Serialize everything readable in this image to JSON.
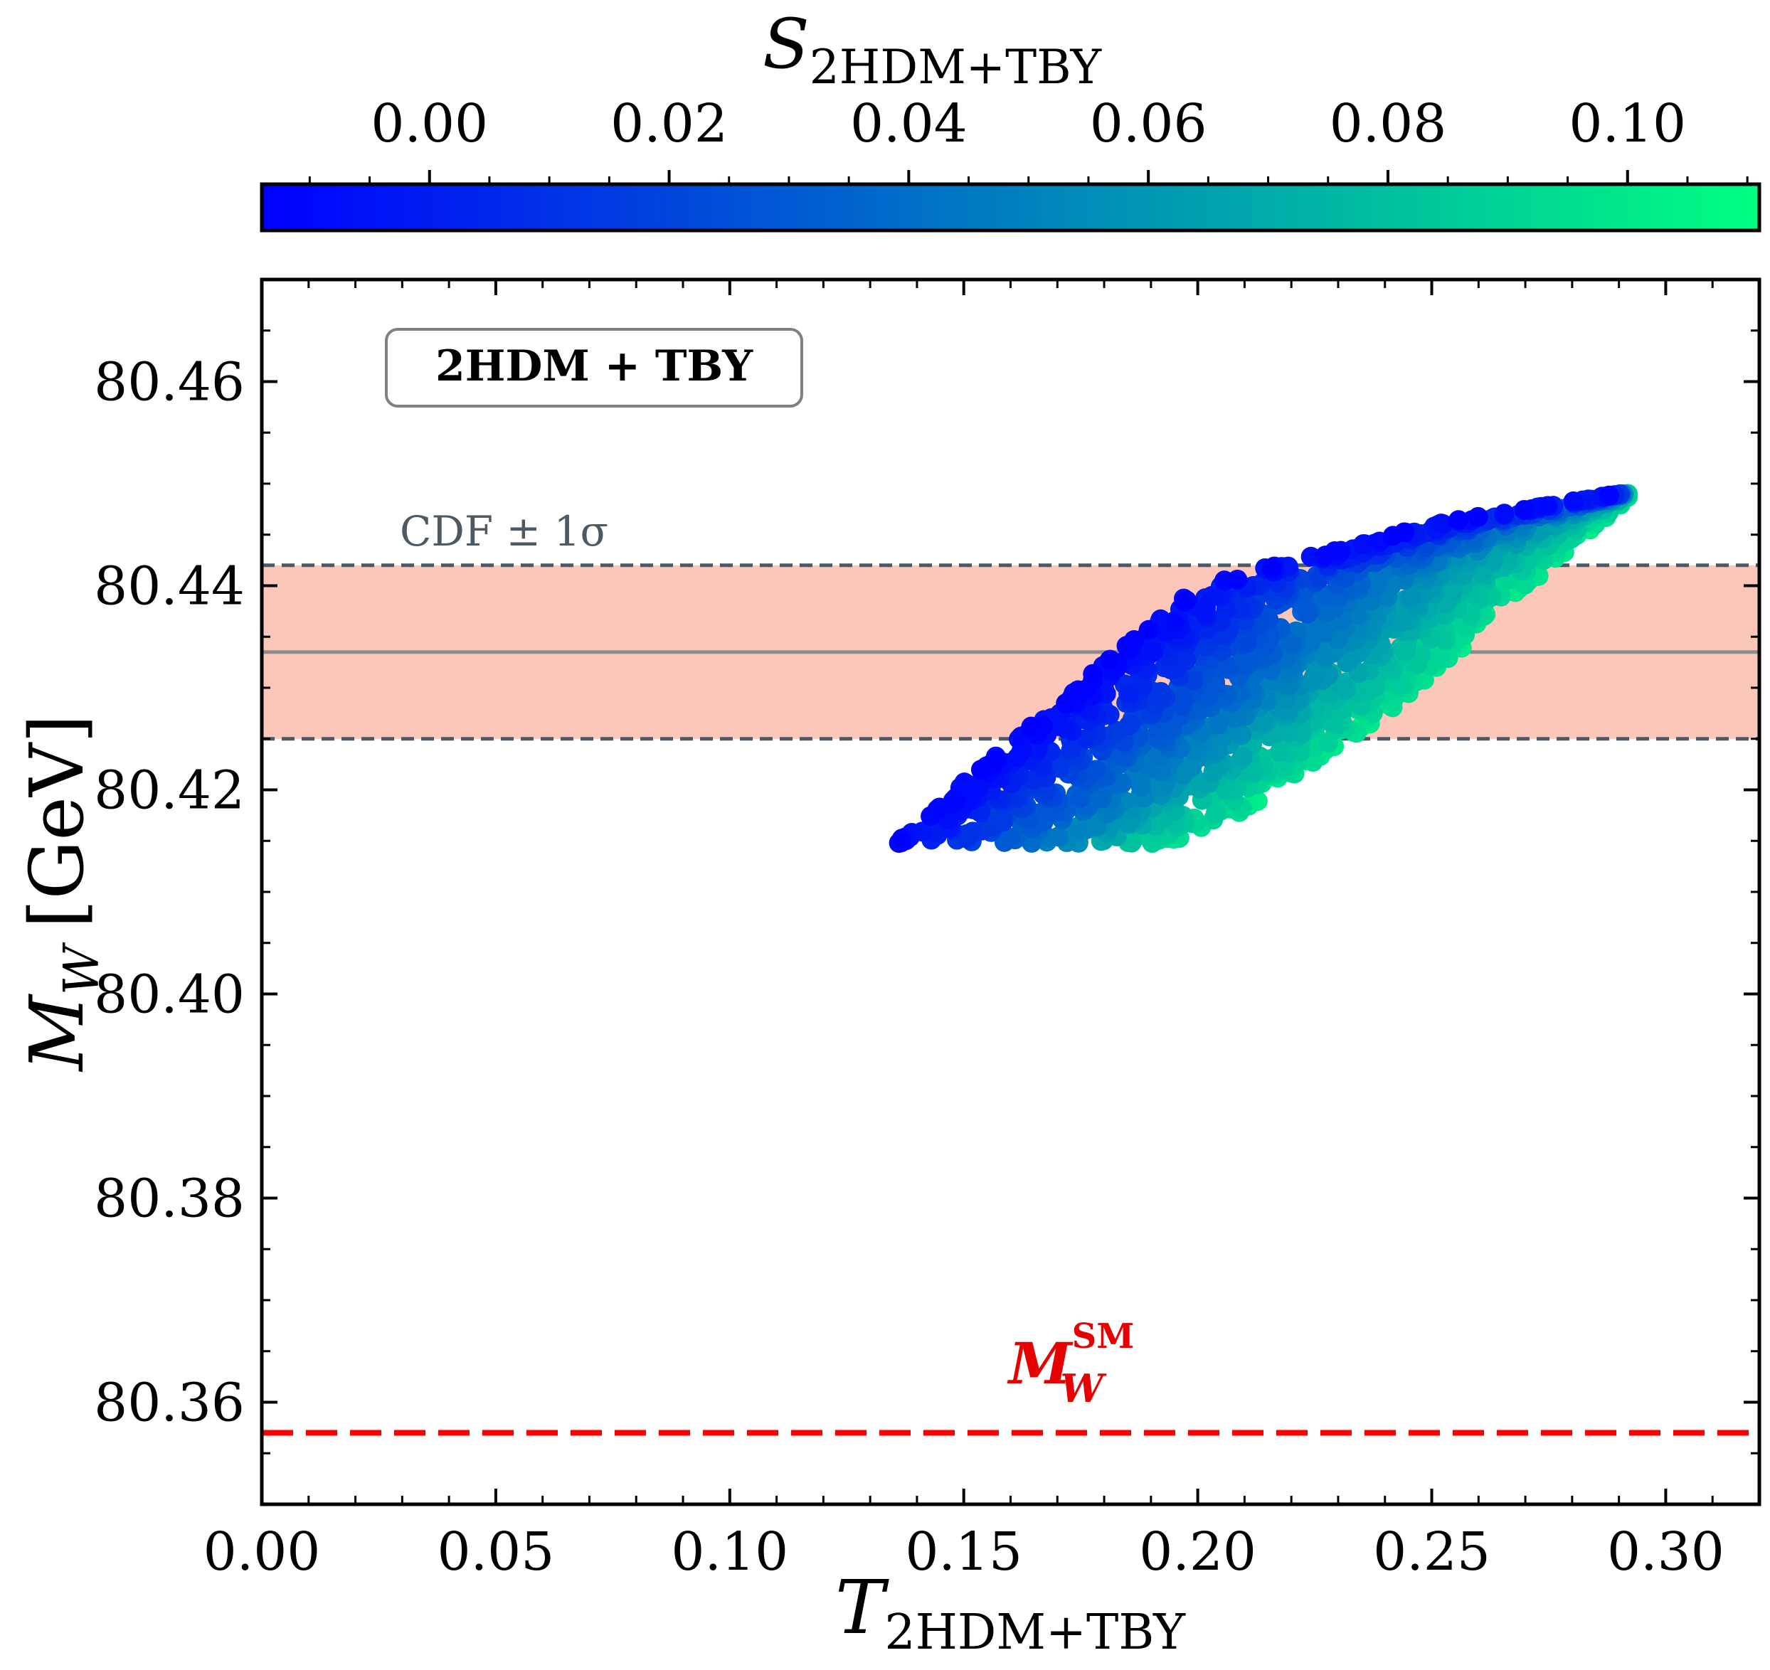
{
  "chart_data": {
    "type": "scatter",
    "xlabel": "T",
    "xlabel_sub": "2HDM+TBY",
    "ylabel": "M",
    "ylabel_sub": "W",
    "ylabel_unit": "[GeV]",
    "xlim": [
      0.0,
      0.32
    ],
    "ylim": [
      80.35,
      80.47
    ],
    "x_ticks": [
      0.0,
      0.05,
      0.1,
      0.15,
      0.2,
      0.25,
      0.3
    ],
    "x_tick_labels": [
      "0.00",
      "0.05",
      "0.10",
      "0.15",
      "0.20",
      "0.25",
      "0.30"
    ],
    "y_ticks": [
      80.36,
      80.38,
      80.4,
      80.42,
      80.44,
      80.46
    ],
    "y_tick_labels": [
      "80.36",
      "80.38",
      "80.40",
      "80.42",
      "80.44",
      "80.46"
    ],
    "grid": false,
    "colorbar": {
      "label": "S",
      "label_sub": "2HDM+TBY",
      "range": [
        -0.014,
        0.111
      ],
      "ticks": [
        0.0,
        0.02,
        0.04,
        0.06,
        0.08,
        0.1
      ],
      "tick_labels": [
        "0.00",
        "0.02",
        "0.04",
        "0.06",
        "0.08",
        "0.10"
      ],
      "colormap": "winter",
      "placement": "top"
    },
    "annotation_box": "2HDM + TBY",
    "cdf_band": {
      "label": "CDF ± 1σ",
      "central": 80.4335,
      "low": 80.425,
      "high": 80.442
    },
    "sm_line": {
      "label": "M",
      "label_sub": "W",
      "label_sup": "SM",
      "value": 80.357,
      "color": "#ff0000"
    },
    "scatter_region": {
      "description_values": {
        "lower_left_corner": [
          0.135,
          80.415
        ],
        "upper_left_edge": [
          [
            0.135,
            80.415
          ],
          [
            0.2,
            80.44
          ],
          [
            0.25,
            80.446
          ],
          [
            0.29,
            80.449
          ]
        ],
        "lower_right_edge": [
          [
            0.195,
            80.415
          ],
          [
            0.21,
            80.418
          ],
          [
            0.245,
            80.429
          ],
          [
            0.28,
            80.444
          ]
        ]
      },
      "color_trend": "S increases from ~-0.01 (blue) on the upper-left edge to ~0.1 (green) on the lower-right edge"
    }
  }
}
